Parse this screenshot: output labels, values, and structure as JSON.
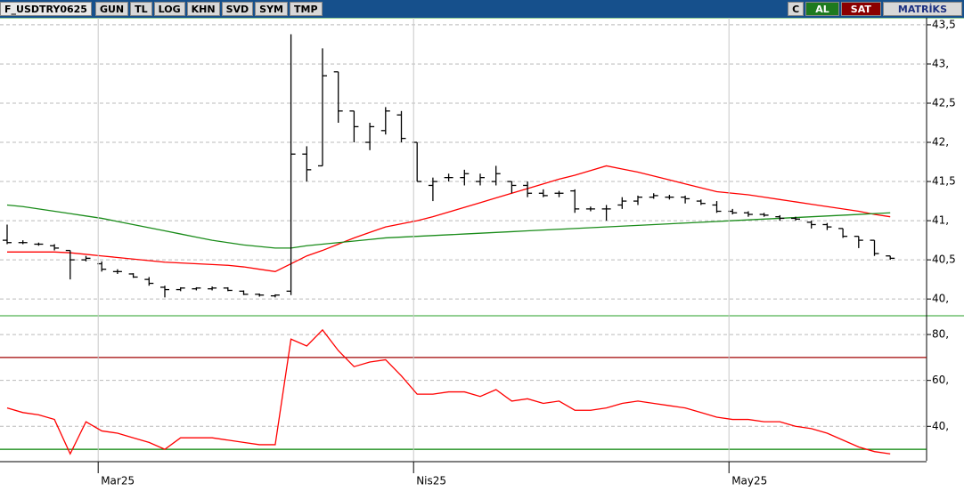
{
  "toolbar": {
    "symbol": "F_USDTRY0625",
    "items": [
      "GUN",
      "TL",
      "LOG",
      "KHN",
      "SVD",
      "SYM",
      "TMP"
    ],
    "right": [
      "C",
      "AL",
      "SAT",
      "MATRİKS"
    ]
  },
  "chart_data": [
    {
      "type": "ohlc",
      "ylim": [
        39.82,
        43.59
      ],
      "yticks": [
        {
          "value": 43.5,
          "label": "43,5"
        },
        {
          "value": 43,
          "label": "43,"
        },
        {
          "value": 42.5,
          "label": "42,5"
        },
        {
          "value": 42,
          "label": "42,"
        },
        {
          "value": 41.5,
          "label": "41,5"
        },
        {
          "value": 41,
          "label": "41,"
        },
        {
          "value": 40.5,
          "label": "40,5"
        },
        {
          "value": 40,
          "label": "40,"
        }
      ],
      "grid": true,
      "color": "#000000",
      "open": [
        40.75,
        40.72,
        40.7,
        40.68,
        40.62,
        40.5,
        40.45,
        40.35,
        40.32,
        40.25,
        40.15,
        40.12,
        40.13,
        40.13,
        40.14,
        40.1,
        40.06,
        40.04,
        40.1,
        41.85,
        41.7,
        42.9,
        42.4,
        42.0,
        42.15,
        42.35,
        42.0,
        41.45,
        41.55,
        41.55,
        41.5,
        41.5,
        41.5,
        41.45,
        41.35,
        41.35,
        41.38,
        41.15,
        41.15,
        41.2,
        41.25,
        41.3,
        41.3,
        41.3,
        41.25,
        41.2,
        41.12,
        41.1,
        41.08,
        41.05,
        41.03,
        40.98,
        40.95,
        40.9,
        40.8,
        40.75,
        40.55
      ],
      "high": [
        40.95,
        40.75,
        40.72,
        40.7,
        40.62,
        40.55,
        40.48,
        40.38,
        40.33,
        40.28,
        40.17,
        40.15,
        40.15,
        40.16,
        40.15,
        40.11,
        40.07,
        40.06,
        43.38,
        41.95,
        43.2,
        42.9,
        42.4,
        42.25,
        42.45,
        42.4,
        42.0,
        41.55,
        41.6,
        41.65,
        41.6,
        41.7,
        41.5,
        41.5,
        41.4,
        41.38,
        41.4,
        41.18,
        41.2,
        41.3,
        41.32,
        41.35,
        41.33,
        41.32,
        41.27,
        41.25,
        41.15,
        41.12,
        41.1,
        41.07,
        41.05,
        41.0,
        40.97,
        40.9,
        40.8,
        40.75,
        40.55
      ],
      "low": [
        40.7,
        40.7,
        40.68,
        40.62,
        40.25,
        40.48,
        40.35,
        40.32,
        40.27,
        40.17,
        40.02,
        40.1,
        40.11,
        40.11,
        40.1,
        40.05,
        40.03,
        40.02,
        40.05,
        41.5,
        41.7,
        42.25,
        42.0,
        41.9,
        42.1,
        42.0,
        41.5,
        41.25,
        41.5,
        41.45,
        41.45,
        41.45,
        41.35,
        41.3,
        41.3,
        41.3,
        41.1,
        41.12,
        41.0,
        41.15,
        41.2,
        41.28,
        41.27,
        41.22,
        41.2,
        41.1,
        41.08,
        41.05,
        41.05,
        41.0,
        41.0,
        40.9,
        40.88,
        40.78,
        40.65,
        40.55,
        40.5
      ],
      "close": [
        40.72,
        40.72,
        40.7,
        40.65,
        40.5,
        40.52,
        40.38,
        40.35,
        40.28,
        40.2,
        40.12,
        40.14,
        40.14,
        40.14,
        40.11,
        40.06,
        40.05,
        40.05,
        41.85,
        41.65,
        42.85,
        42.4,
        42.2,
        42.2,
        42.4,
        42.05,
        41.5,
        41.5,
        41.55,
        41.6,
        41.55,
        41.6,
        41.45,
        41.35,
        41.32,
        41.35,
        41.15,
        41.15,
        41.15,
        41.25,
        41.3,
        41.32,
        41.3,
        41.28,
        41.22,
        41.12,
        41.1,
        41.08,
        41.07,
        41.03,
        41.02,
        40.95,
        40.92,
        40.8,
        40.75,
        40.58,
        40.52
      ],
      "lines": [
        {
          "color": "#ff0000",
          "values": [
            40.6,
            40.6,
            40.6,
            40.6,
            40.59,
            40.57,
            40.55,
            40.53,
            40.51,
            40.49,
            40.47,
            40.46,
            40.45,
            40.44,
            40.43,
            40.41,
            40.38,
            40.35,
            40.45,
            40.55,
            40.62,
            40.7,
            40.78,
            40.85,
            40.92,
            40.96,
            41.0,
            41.05,
            41.11,
            41.17,
            41.23,
            41.29,
            41.35,
            41.41,
            41.47,
            41.53,
            41.58,
            41.64,
            41.7,
            41.66,
            41.62,
            41.57,
            41.52,
            41.47,
            41.42,
            41.37,
            41.35,
            41.33,
            41.3,
            41.27,
            41.24,
            41.21,
            41.18,
            41.15,
            41.12,
            41.08,
            41.05
          ]
        },
        {
          "color": "#1a8c1a",
          "values": [
            41.2,
            41.18,
            41.15,
            41.12,
            41.09,
            41.06,
            41.03,
            40.99,
            40.95,
            40.91,
            40.87,
            40.83,
            40.79,
            40.75,
            40.72,
            40.69,
            40.67,
            40.65,
            40.65,
            40.68,
            40.7,
            40.72,
            40.74,
            40.76,
            40.78,
            40.79,
            40.8,
            40.81,
            40.82,
            40.83,
            40.84,
            40.85,
            40.86,
            40.87,
            40.88,
            40.89,
            40.9,
            40.91,
            40.92,
            40.93,
            40.94,
            40.95,
            40.96,
            40.97,
            40.98,
            40.99,
            41.0,
            41.01,
            41.02,
            41.03,
            41.04,
            41.05,
            41.06,
            41.07,
            41.08,
            41.09,
            41.1
          ]
        }
      ]
    },
    {
      "type": "line",
      "color": "#ff0000",
      "ylim": [
        25,
        87
      ],
      "grid": true,
      "yticks": [
        {
          "value": 80,
          "label": "80,"
        },
        {
          "value": 60,
          "label": "60,"
        },
        {
          "value": 40,
          "label": "40,"
        }
      ],
      "reference_lines": [
        {
          "value": 70,
          "color": "#a00000"
        },
        {
          "value": 30,
          "color": "#008000"
        }
      ],
      "categories": [
        null,
        null,
        null,
        null,
        null,
        null,
        "Mar25",
        null,
        null,
        null,
        null,
        null,
        null,
        null,
        null,
        null,
        null,
        null,
        null,
        null,
        null,
        null,
        null,
        null,
        null,
        null,
        "Nis25",
        null,
        null,
        null,
        null,
        null,
        null,
        null,
        null,
        null,
        null,
        null,
        null,
        null,
        null,
        null,
        null,
        null,
        null,
        null,
        "May25",
        null,
        null,
        null,
        null,
        null,
        null,
        null,
        null,
        null,
        null
      ],
      "values": [
        48,
        46,
        45,
        43,
        28,
        42,
        38,
        37,
        35,
        33,
        30,
        35,
        35,
        35,
        34,
        33,
        32,
        32,
        78,
        75,
        82,
        73,
        66,
        68,
        69,
        62,
        54,
        54,
        55,
        55,
        53,
        56,
        51,
        52,
        50,
        51,
        47,
        47,
        48,
        50,
        51,
        50,
        49,
        48,
        46,
        44,
        43,
        43,
        42,
        42,
        40,
        39,
        37,
        34,
        31,
        29,
        28
      ]
    }
  ]
}
